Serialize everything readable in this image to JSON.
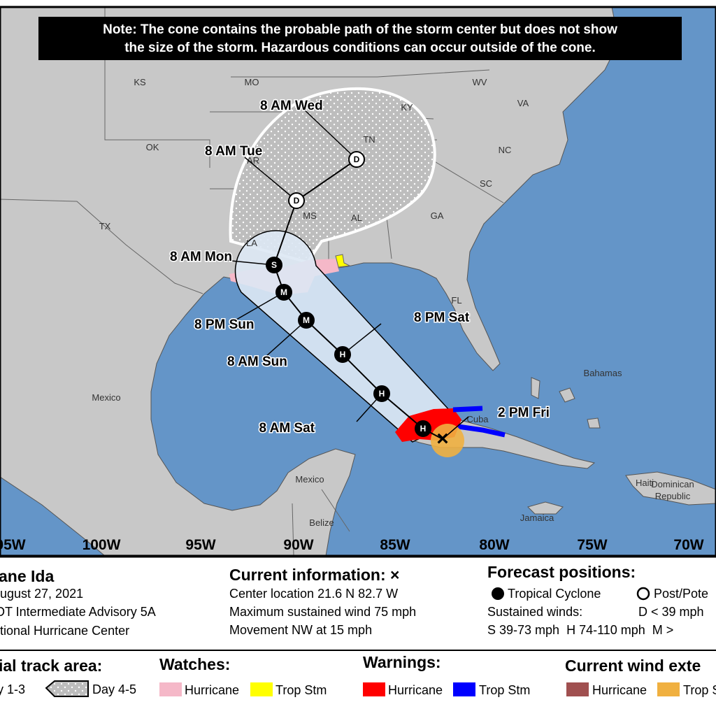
{
  "note": [
    "Note: The cone contains the probable path of the storm center but does not show",
    "the size of the storm. Hazardous conditions can occur outside of the cone."
  ],
  "map_labels": [
    "KS",
    "MO",
    "KY",
    "WV",
    "VA",
    "OK",
    "TN",
    "NC",
    "AR",
    "SC",
    "GA",
    "MS",
    "AL",
    "TX",
    "LA",
    "FL",
    "Mexico",
    "Mexico",
    "Bahamas",
    "Cuba",
    "Jamaica",
    "Haiti",
    "Dominican",
    "Republic",
    "Belize"
  ],
  "longitude_labels": [
    "05W",
    "100W",
    "95W",
    "90W",
    "85W",
    "80W",
    "75W",
    "70W"
  ],
  "forecast_points": [
    {
      "time": "2 PM Fri",
      "marker": "H"
    },
    {
      "time": "8 AM Sat",
      "marker": "H"
    },
    {
      "time": "8 PM Sat",
      "marker": "H"
    },
    {
      "time": "8 AM Sun",
      "marker": "M"
    },
    {
      "time": "8 PM Sun",
      "marker": "M"
    },
    {
      "time": "8 AM Mon",
      "marker": "S"
    },
    {
      "time": "8 AM Tue",
      "marker": "D"
    },
    {
      "time": "8 AM Wed",
      "marker": "D"
    }
  ],
  "current_marker": "×",
  "storm": {
    "name": "ane Ida",
    "date": "ugust 27, 2021",
    "advisory": "DT Intermediate Advisory 5A",
    "center": "tional Hurricane Center"
  },
  "current_information": {
    "title": "Current information: ×",
    "lines": [
      "Center location 21.6 N 82.7 W",
      "Maximum sustained wind 75 mph",
      "Movement NW at 15 mph"
    ]
  },
  "forecast_positions": {
    "title": "Forecast positions:",
    "tropical": "Tropical Cyclone",
    "post": "Post/Pote",
    "winds_label": "Sustained winds:",
    "d_range": "D < 39 mph",
    "ranges": "S 39-73 mph  H 74-110 mph  M >"
  },
  "legend": {
    "track_title": "ial track area:",
    "day13": "y 1-3",
    "day45": "Day 4-5",
    "watches_title": "Watches:",
    "watch_hurricane": "Hurricane",
    "watch_tropstm": "Trop Stm",
    "warnings_title": "Warnings:",
    "warn_hurricane": "Hurricane",
    "warn_tropstm": "Trop Stm",
    "wind_title": "Current wind exte",
    "wind_hurricane": "Hurricane",
    "wind_tropstm": "Trop S"
  }
}
